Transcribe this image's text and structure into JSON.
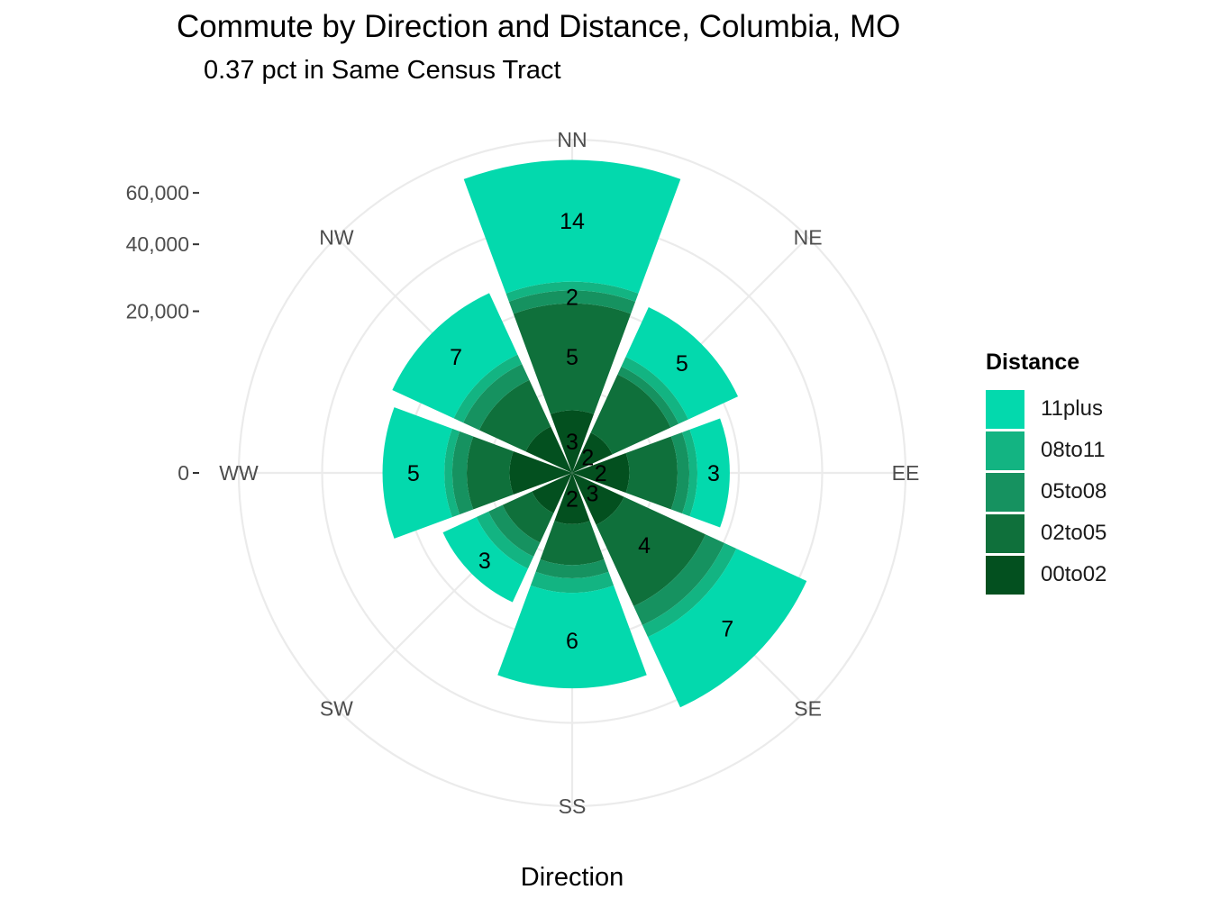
{
  "title": "Commute by Direction and Distance, Columbia, MO",
  "subtitle": "0.37 pct in Same Census Tract",
  "chart_data": {
    "type": "bar",
    "coordinate_system": "polar",
    "title": "Commute by Direction and Distance, Columbia, MO",
    "subtitle": "0.37 pct in Same Census Tract",
    "xlabel": "Direction",
    "ylabel": "",
    "categories": [
      "NN",
      "NE",
      "EE",
      "SE",
      "SS",
      "SW",
      "WW",
      "NW"
    ],
    "y_ticks": [
      0,
      20000,
      40000,
      60000
    ],
    "y_tick_labels": [
      "0",
      "20,000",
      "40,000",
      "60,000"
    ],
    "ylim": [
      0,
      85000
    ],
    "grid": true,
    "legend": {
      "title": "Distance",
      "position": "right"
    },
    "series": [
      {
        "name": "00to02",
        "color": "#03501F",
        "values": [
          3000,
          1500,
          2500,
          2500,
          2000,
          1500,
          3000,
          2000
        ]
      },
      {
        "name": "02to05",
        "color": "#0F703B",
        "values": [
          19000,
          7500,
          6000,
          14000,
          4500,
          3000,
          5500,
          6000
        ]
      },
      {
        "name": "05to08",
        "color": "#169260",
        "values": [
          3500,
          1500,
          2000,
          5000,
          2000,
          2000,
          2500,
          3000
        ]
      },
      {
        "name": "08to11",
        "color": "#13B482",
        "values": [
          2500,
          2000,
          1500,
          3500,
          2500,
          2000,
          1500,
          2000
        ]
      },
      {
        "name": "11plus",
        "color": "#03D9AD",
        "values": [
          47000,
          13000,
          7000,
          26000,
          24500,
          7000,
          15000,
          17000
        ]
      }
    ],
    "bar_labels": {
      "00to02": [
        "3",
        "2",
        "2",
        "3",
        "2",
        "",
        "",
        ""
      ],
      "02to05": [
        "5",
        "",
        "",
        "4",
        "",
        "",
        "",
        ""
      ],
      "05to08": [
        "2",
        "",
        "",
        "",
        "",
        "",
        "",
        ""
      ],
      "08to11": [
        "",
        "",
        "",
        "",
        "",
        "",
        "",
        ""
      ],
      "11plus": [
        "14",
        "5",
        "3",
        "7",
        "6",
        "3",
        "5",
        "7"
      ]
    }
  }
}
